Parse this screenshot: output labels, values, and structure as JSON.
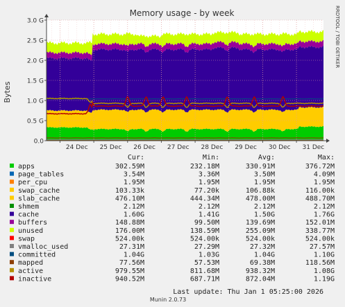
{
  "chart_data": {
    "type": "area",
    "title": "Memory usage - by week",
    "ylabel": "Bytes",
    "watermark": "RRDTOOL / TOBI OETIKER",
    "footer": "Munin 2.0.73",
    "last_update": "Last update:  Thu Jan  1 05:25:00 2026",
    "ylim": [
      0,
      3000000000
    ],
    "y_ticks": [
      {
        "value": 0,
        "label": "0.0"
      },
      {
        "value": 500000000,
        "label": "0.5 G"
      },
      {
        "value": 1000000000,
        "label": "1.0 G"
      },
      {
        "value": 1500000000,
        "label": "1.5 G"
      },
      {
        "value": 2000000000,
        "label": "2.0 G"
      },
      {
        "value": 2500000000,
        "label": "2.5 G"
      },
      {
        "value": 3000000000,
        "label": "3.0 G"
      }
    ],
    "x_ticks": [
      "24 Dec",
      "25 Dec",
      "26 Dec",
      "27 Dec",
      "28 Dec",
      "29 Dec",
      "30 Dec",
      "31 Dec"
    ],
    "x_range_days": [
      23.6,
      31.8
    ],
    "x_tick_days": [
      24.0,
      25.0,
      26.0,
      27.0,
      28.0,
      29.0,
      30.0,
      31.0
    ],
    "grid": true,
    "legend": {
      "headers": [
        "Cur:",
        "Min:",
        "Avg:",
        "Max:"
      ],
      "rows": [
        {
          "name": "apps",
          "color": "#00cc00",
          "cur": "302.59M",
          "min": "232.18M",
          "avg": "330.91M",
          "max": "376.72M"
        },
        {
          "name": "page_tables",
          "color": "#0066b3",
          "cur": "3.54M",
          "min": "3.36M",
          "avg": "3.50M",
          "max": "4.09M"
        },
        {
          "name": "per_cpu",
          "color": "#ff8000",
          "cur": "1.95M",
          "min": "1.95M",
          "avg": "1.95M",
          "max": "1.95M"
        },
        {
          "name": "swap_cache",
          "color": "#ffcc00",
          "cur": "103.33k",
          "min": "77.20k",
          "avg": "106.88k",
          "max": "116.00k"
        },
        {
          "name": "slab_cache",
          "color": "#ffcc00",
          "cur": "476.10M",
          "min": "444.34M",
          "avg": "478.00M",
          "max": "488.70M"
        },
        {
          "name": "shmem",
          "color": "#008f00",
          "cur": "2.12M",
          "min": "2.12M",
          "avg": "2.12M",
          "max": "2.12M"
        },
        {
          "name": "cache",
          "color": "#330099",
          "cur": "1.60G",
          "min": "1.41G",
          "avg": "1.50G",
          "max": "1.76G"
        },
        {
          "name": "buffers",
          "color": "#990099",
          "cur": "148.88M",
          "min": "99.50M",
          "avg": "139.69M",
          "max": "152.01M"
        },
        {
          "name": "unused",
          "color": "#ccff00",
          "cur": "176.00M",
          "min": "138.59M",
          "avg": "255.09M",
          "max": "338.77M"
        },
        {
          "name": "swap",
          "color": "#ff0000",
          "cur": "524.00k",
          "min": "524.00k",
          "avg": "524.00k",
          "max": "524.00k"
        },
        {
          "name": "vmalloc_used",
          "color": "#808080",
          "cur": "27.31M",
          "min": "27.29M",
          "avg": "27.32M",
          "max": "27.57M"
        },
        {
          "name": "committed",
          "color": "#004d80",
          "cur": "1.04G",
          "min": "1.03G",
          "avg": "1.04G",
          "max": "1.10G"
        },
        {
          "name": "mapped",
          "color": "#8c3d00",
          "cur": "77.56M",
          "min": "57.53M",
          "avg": "69.38M",
          "max": "118.56M"
        },
        {
          "name": "active",
          "color": "#b38f00",
          "cur": "979.55M",
          "min": "811.68M",
          "avg": "938.32M",
          "max": "1.08G"
        },
        {
          "name": "inactive",
          "color": "#b30000",
          "cur": "940.52M",
          "min": "687.71M",
          "avg": "872.04M",
          "max": "1.19G"
        }
      ]
    }
  }
}
